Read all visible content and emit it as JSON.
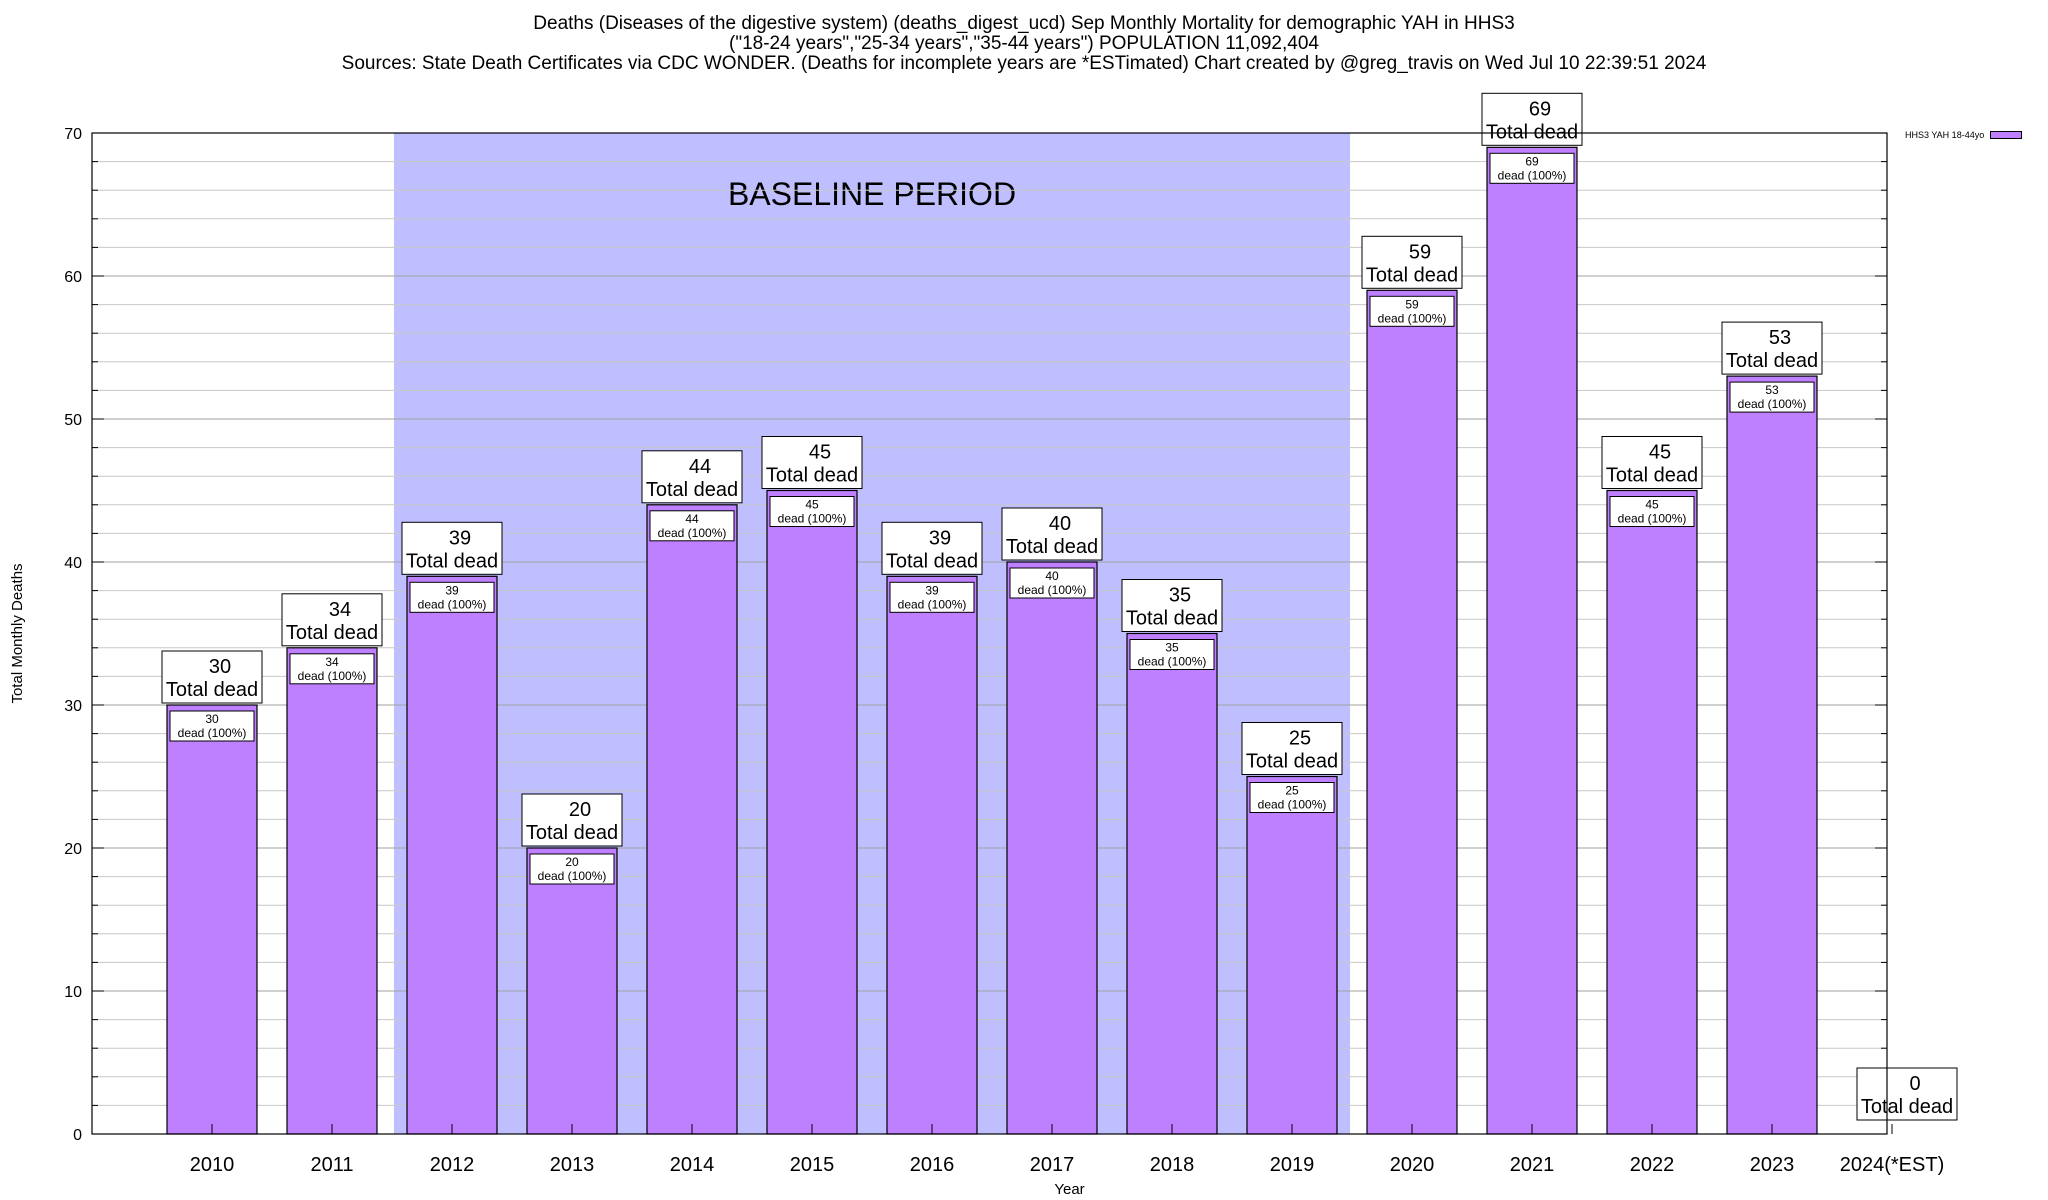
{
  "title": {
    "line1": "Deaths (Diseases of the digestive system) (deaths_digest_ucd) Sep Monthly Mortality for demographic YAH in HHS3",
    "line2": "(\"18-24 years\",\"25-34 years\",\"35-44 years\") POPULATION 11,092,404",
    "sources": "Sources: State Death Certificates via CDC WONDER. (Deaths for incomplete years are *ESTimated)",
    "credit": "Chart created by @greg_travis on Wed Jul 10 22:39:51 2024"
  },
  "legend": {
    "label": "HHS3 YAH 18-44yo"
  },
  "colors": {
    "bar": "#bf80ff",
    "baseline": "#bfbfff"
  },
  "chart_data": {
    "type": "bar",
    "xlabel": "Year",
    "ylabel": "Total Monthly Deaths",
    "ylim": [
      0,
      70
    ],
    "yticks": [
      0,
      10,
      20,
      30,
      40,
      50,
      60,
      70
    ],
    "grid": true,
    "categories": [
      "2010",
      "2011",
      "2012",
      "2013",
      "2014",
      "2015",
      "2016",
      "2017",
      "2018",
      "2019",
      "2020",
      "2021",
      "2022",
      "2023",
      "2024(*EST)"
    ],
    "series": [
      {
        "name": "HHS3 YAH 18-44yo",
        "values": [
          30,
          34,
          39,
          20,
          44,
          45,
          39,
          40,
          35,
          25,
          59,
          69,
          45,
          53,
          0
        ]
      }
    ],
    "top_label_suffix": "Total dead",
    "inner_label_suffix": "dead (100%)",
    "annotation": {
      "text": "BASELINE PERIOD",
      "from": "2012",
      "to": "2019"
    }
  }
}
